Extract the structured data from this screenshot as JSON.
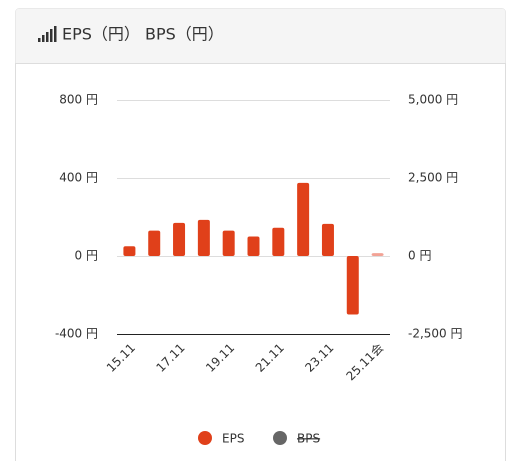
{
  "chart_data": {
    "type": "bar",
    "title": "EPS（円） BPS（円）",
    "categories": [
      "15.11",
      null,
      "17.11",
      null,
      "19.11",
      null,
      "21.11",
      null,
      "23.11",
      null,
      "25.11会"
    ],
    "series": [
      {
        "name": "EPS",
        "color": "#e0401a",
        "colors": [
          "#e0401a",
          "#e0401a",
          "#e0401a",
          "#e0401a",
          "#e0401a",
          "#e0401a",
          "#e0401a",
          "#e0401a",
          "#e0401a",
          "#e0401a",
          "#f2a295"
        ],
        "values": [
          50,
          130,
          170,
          185,
          130,
          100,
          145,
          375,
          165,
          -300,
          15
        ]
      },
      {
        "name": "BPS",
        "color": "#666666",
        "axis": "y2",
        "hidden": true,
        "values": [
          null,
          null,
          null,
          null,
          null,
          null,
          null,
          null,
          null,
          null,
          null
        ]
      }
    ],
    "ylim": [
      -400,
      800
    ],
    "yticks": [
      {
        "value": -400,
        "label": "-400 円"
      },
      {
        "value": 0,
        "label": "0 円"
      },
      {
        "value": 400,
        "label": "400 円"
      },
      {
        "value": 800,
        "label": "800 円"
      }
    ],
    "y2lim": [
      -2500,
      5000
    ],
    "y2ticks": [
      {
        "value": -2500,
        "label": "-2,500 円"
      },
      {
        "value": 0,
        "label": "0 円"
      },
      {
        "value": 2500,
        "label": "2,500 円"
      },
      {
        "value": 5000,
        "label": "5,000 円"
      }
    ],
    "grid": true,
    "legend": "bottom"
  }
}
